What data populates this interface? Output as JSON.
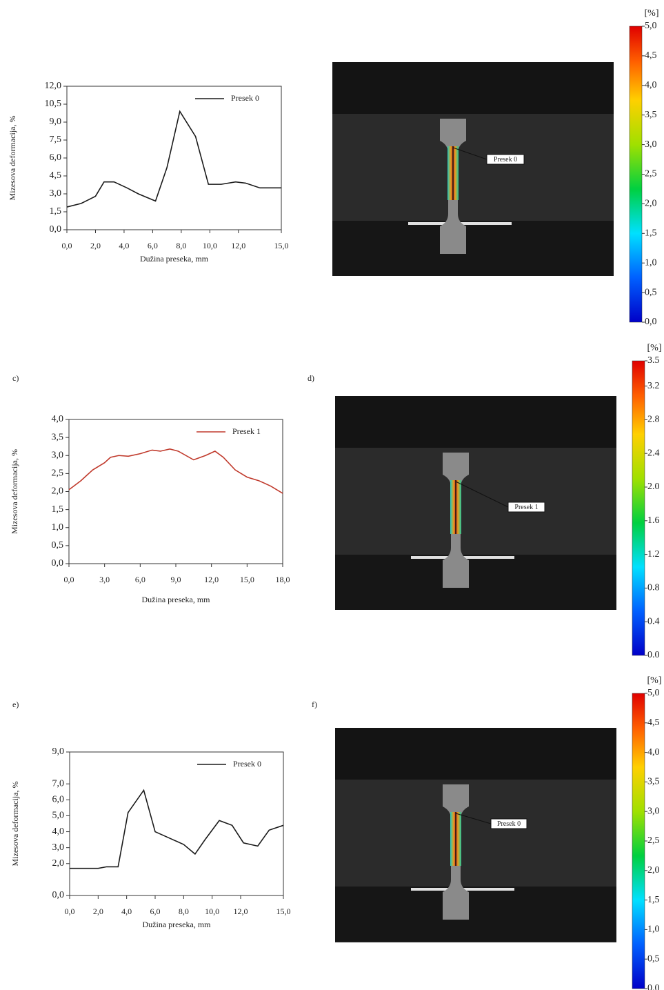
{
  "chart_data": [
    {
      "type": "line",
      "xlabel": "Dužina preseka, mm",
      "ylabel": "Mizesova deformacija, %",
      "xlim": [
        0,
        15
      ],
      "ylim": [
        0,
        12
      ],
      "xticks": [
        {
          "value": 0,
          "label": "0,0"
        },
        {
          "value": 2,
          "label": "2,0"
        },
        {
          "value": 4,
          "label": "4,0"
        },
        {
          "value": 6,
          "label": "6,0"
        },
        {
          "value": 8,
          "label": "8,0"
        },
        {
          "value": 10,
          "label": "10,0"
        },
        {
          "value": 12,
          "label": "12,0"
        },
        {
          "value": 15,
          "label": "15,0"
        }
      ],
      "yticks": [
        {
          "value": 0,
          "label": "0,0"
        },
        {
          "value": 1.5,
          "label": "1,5"
        },
        {
          "value": 3,
          "label": "3,0"
        },
        {
          "value": 4.5,
          "label": "4,5"
        },
        {
          "value": 6,
          "label": "6,0"
        },
        {
          "value": 7.5,
          "label": "7,5"
        },
        {
          "value": 9,
          "label": "9,0"
        },
        {
          "value": 10.5,
          "label": "10,5"
        },
        {
          "value": 12,
          "label": "12,0"
        }
      ],
      "x": [
        0,
        1,
        2,
        2.6,
        3.3,
        4.2,
        5,
        6.2,
        7,
        7.9,
        9,
        9.9,
        10.8,
        11.8,
        12.5,
        13.5,
        15
      ],
      "series": [
        {
          "name": "Presek 0",
          "color": "#1a1a1a",
          "values": [
            1.9,
            2.2,
            2.8,
            4.0,
            4.0,
            3.5,
            3.0,
            2.4,
            5.2,
            9.9,
            7.8,
            3.8,
            3.8,
            4.0,
            3.9,
            3.5,
            3.5
          ]
        }
      ]
    },
    {
      "type": "line",
      "xlabel": "Dužina preseka, mm",
      "ylabel": "Mizesova deformacija, %",
      "xlim": [
        0,
        18
      ],
      "ylim": [
        0,
        4
      ],
      "xticks": [
        {
          "value": 0,
          "label": "0,0"
        },
        {
          "value": 3,
          "label": "3,0"
        },
        {
          "value": 6,
          "label": "6,0"
        },
        {
          "value": 9,
          "label": "9,0"
        },
        {
          "value": 12,
          "label": "12,0"
        },
        {
          "value": 15,
          "label": "15,0"
        },
        {
          "value": 18,
          "label": "18,0"
        }
      ],
      "yticks": [
        {
          "value": 0,
          "label": "0,0"
        },
        {
          "value": 0.5,
          "label": "0,5"
        },
        {
          "value": 1,
          "label": "1,0"
        },
        {
          "value": 1.5,
          "label": "1,5"
        },
        {
          "value": 2,
          "label": "2,0"
        },
        {
          "value": 2.5,
          "label": "2,5"
        },
        {
          "value": 3,
          "label": "3,0"
        },
        {
          "value": 3.5,
          "label": "3,5"
        },
        {
          "value": 4,
          "label": "4,0"
        }
      ],
      "x": [
        0,
        1,
        2,
        3,
        3.5,
        4.2,
        5,
        6,
        7,
        7.7,
        8.5,
        9.2,
        10.5,
        11.5,
        12.3,
        13,
        14,
        15,
        16,
        17,
        18
      ],
      "series": [
        {
          "name": "Presek 1",
          "color": "#c0392b",
          "values": [
            2.05,
            2.3,
            2.6,
            2.8,
            2.95,
            3.0,
            2.98,
            3.05,
            3.15,
            3.12,
            3.18,
            3.12,
            2.88,
            3.0,
            3.12,
            2.95,
            2.6,
            2.4,
            2.3,
            2.15,
            1.95
          ]
        }
      ]
    },
    {
      "type": "line",
      "xlabel": "Dužina preseka, mm",
      "ylabel": "Mizesova deformacija, %",
      "xlim": [
        0,
        15
      ],
      "ylim": [
        0,
        9
      ],
      "xticks": [
        {
          "value": 0,
          "label": "0,0"
        },
        {
          "value": 2,
          "label": "2,0"
        },
        {
          "value": 4,
          "label": "4,0"
        },
        {
          "value": 6,
          "label": "6,0"
        },
        {
          "value": 8,
          "label": "8,0"
        },
        {
          "value": 10,
          "label": "10,0"
        },
        {
          "value": 12,
          "label": "12,0"
        },
        {
          "value": 15,
          "label": "15,0"
        }
      ],
      "yticks": [
        {
          "value": 0,
          "label": "0,0"
        },
        {
          "value": 2,
          "label": "2,0"
        },
        {
          "value": 3,
          "label": "3,0"
        },
        {
          "value": 4,
          "label": "4,0"
        },
        {
          "value": 5,
          "label": "5,0"
        },
        {
          "value": 6,
          "label": "6,0"
        },
        {
          "value": 7,
          "label": "7,0"
        },
        {
          "value": 9,
          "label": "9,0"
        }
      ],
      "x": [
        0,
        1,
        2,
        2.6,
        3.4,
        4.1,
        5.2,
        6,
        7,
        8,
        8.8,
        9.5,
        10.5,
        11.4,
        12.2,
        13.2,
        14,
        15
      ],
      "series": [
        {
          "name": "Presek 0",
          "color": "#1a1a1a",
          "values": [
            1.7,
            1.7,
            1.7,
            1.8,
            1.8,
            5.2,
            6.6,
            4.0,
            3.6,
            3.2,
            2.6,
            3.5,
            4.7,
            4.4,
            3.3,
            3.1,
            4.1,
            4.4
          ]
        }
      ]
    }
  ],
  "panel_labels": [
    "c)",
    "d)",
    "e)",
    "f)"
  ],
  "images": [
    {
      "annotation": "Presek 0",
      "colorbar": {
        "unit": "[%]",
        "lim": [
          0,
          5
        ],
        "ticks": [
          {
            "value": 0,
            "label": "0,0"
          },
          {
            "value": 0.5,
            "label": "0,5"
          },
          {
            "value": 1,
            "label": "1,0"
          },
          {
            "value": 1.5,
            "label": "1,5"
          },
          {
            "value": 2,
            "label": "2,0"
          },
          {
            "value": 2.5,
            "label": "2,5"
          },
          {
            "value": 3,
            "label": "3,0"
          },
          {
            "value": 3.5,
            "label": "3,5"
          },
          {
            "value": 4,
            "label": "4,0"
          },
          {
            "value": 4.5,
            "label": "4,5"
          },
          {
            "value": 5,
            "label": "5,0"
          }
        ]
      }
    },
    {
      "annotation": "Presek 1",
      "colorbar": {
        "unit": "[%]",
        "lim": [
          0,
          3.5
        ],
        "ticks": [
          {
            "value": 0,
            "label": "0.0"
          },
          0.4,
          0.8,
          1.2,
          1.6,
          {
            "value": 2,
            "label": "2.0"
          },
          2.4,
          2.8,
          3.2,
          3.5
        ]
      }
    },
    {
      "annotation": "Presek 0",
      "colorbar": {
        "unit": "[%]",
        "lim": [
          0,
          5
        ],
        "ticks": [
          {
            "value": 0,
            "label": "0,0"
          },
          {
            "value": 0.5,
            "label": "0,5"
          },
          {
            "value": 1,
            "label": "1,0"
          },
          {
            "value": 1.5,
            "label": "1,5"
          },
          {
            "value": 2,
            "label": "2,0"
          },
          {
            "value": 2.5,
            "label": "2,5"
          },
          {
            "value": 3,
            "label": "3,0"
          },
          {
            "value": 3.5,
            "label": "3,5"
          },
          {
            "value": 4,
            "label": "4,0"
          },
          {
            "value": 4.5,
            "label": "4,5"
          },
          {
            "value": 5,
            "label": "5,0"
          }
        ]
      }
    }
  ]
}
